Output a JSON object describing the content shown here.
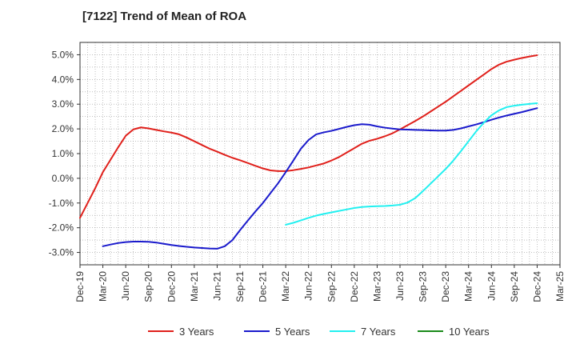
{
  "chart_data": {
    "type": "line",
    "title": "[7122]  Trend of Mean of ROA",
    "x": [
      "Dec-19",
      "Mar-20",
      "Jun-20",
      "Sep-20",
      "Dec-20",
      "Mar-21",
      "Jun-21",
      "Sep-21",
      "Dec-21",
      "Mar-22",
      "Jun-22",
      "Sep-22",
      "Dec-22",
      "Mar-23",
      "Jun-23",
      "Sep-23",
      "Dec-23",
      "Mar-24",
      "Jun-24",
      "Sep-24",
      "Dec-24",
      "Mar-25"
    ],
    "y_ticks": [
      "5.0%",
      "4.0%",
      "3.0%",
      "2.0%",
      "1.0%",
      "0.0%",
      "-1.0%",
      "-2.0%",
      "-3.0%"
    ],
    "ylim": [
      -3.5,
      5.5
    ],
    "grid": true,
    "legend_position": "bottom",
    "series": [
      {
        "name": "3 Years",
        "color": "#e0201b",
        "points": [
          [
            "Dec-19",
            -1.6
          ],
          [
            "Jan-20",
            -1.0
          ],
          [
            "Feb-20",
            -0.4
          ],
          [
            "Mar-20",
            0.25
          ],
          [
            "Apr-20",
            0.75
          ],
          [
            "May-20",
            1.25
          ],
          [
            "Jun-20",
            1.72
          ],
          [
            "Jul-20",
            1.98
          ],
          [
            "Aug-20",
            2.06
          ],
          [
            "Sep-20",
            2.02
          ],
          [
            "Oct-20",
            1.96
          ],
          [
            "Nov-20",
            1.9
          ],
          [
            "Dec-20",
            1.85
          ],
          [
            "Jan-21",
            1.78
          ],
          [
            "Feb-21",
            1.65
          ],
          [
            "Mar-21",
            1.5
          ],
          [
            "Apr-21",
            1.35
          ],
          [
            "May-21",
            1.2
          ],
          [
            "Jun-21",
            1.08
          ],
          [
            "Jul-21",
            0.95
          ],
          [
            "Aug-21",
            0.83
          ],
          [
            "Sep-21",
            0.73
          ],
          [
            "Oct-21",
            0.62
          ],
          [
            "Nov-21",
            0.51
          ],
          [
            "Dec-21",
            0.4
          ],
          [
            "Jan-22",
            0.32
          ],
          [
            "Feb-22",
            0.29
          ],
          [
            "Mar-22",
            0.29
          ],
          [
            "Apr-22",
            0.33
          ],
          [
            "May-22",
            0.38
          ],
          [
            "Jun-22",
            0.44
          ],
          [
            "Jul-22",
            0.52
          ],
          [
            "Aug-22",
            0.6
          ],
          [
            "Sep-22",
            0.72
          ],
          [
            "Oct-22",
            0.86
          ],
          [
            "Nov-22",
            1.04
          ],
          [
            "Dec-22",
            1.22
          ],
          [
            "Jan-23",
            1.4
          ],
          [
            "Feb-23",
            1.52
          ],
          [
            "Mar-23",
            1.6
          ],
          [
            "Apr-23",
            1.7
          ],
          [
            "May-23",
            1.82
          ],
          [
            "Jun-23",
            1.98
          ],
          [
            "Jul-23",
            2.15
          ],
          [
            "Aug-23",
            2.32
          ],
          [
            "Sep-23",
            2.5
          ],
          [
            "Oct-23",
            2.7
          ],
          [
            "Nov-23",
            2.9
          ],
          [
            "Dec-23",
            3.1
          ],
          [
            "Jan-24",
            3.32
          ],
          [
            "Feb-24",
            3.54
          ],
          [
            "Mar-24",
            3.76
          ],
          [
            "Apr-24",
            3.98
          ],
          [
            "May-24",
            4.2
          ],
          [
            "Jun-24",
            4.42
          ],
          [
            "Jul-24",
            4.6
          ],
          [
            "Aug-24",
            4.72
          ],
          [
            "Sep-24",
            4.8
          ],
          [
            "Oct-24",
            4.87
          ],
          [
            "Nov-24",
            4.93
          ],
          [
            "Dec-24",
            4.98
          ]
        ]
      },
      {
        "name": "5 Years",
        "color": "#1a1acc",
        "points": [
          [
            "Mar-20",
            -2.75
          ],
          [
            "Apr-20",
            -2.68
          ],
          [
            "May-20",
            -2.62
          ],
          [
            "Jun-20",
            -2.58
          ],
          [
            "Jul-20",
            -2.56
          ],
          [
            "Aug-20",
            -2.56
          ],
          [
            "Sep-20",
            -2.57
          ],
          [
            "Oct-20",
            -2.6
          ],
          [
            "Nov-20",
            -2.65
          ],
          [
            "Dec-20",
            -2.7
          ],
          [
            "Jan-21",
            -2.74
          ],
          [
            "Feb-21",
            -2.77
          ],
          [
            "Mar-21",
            -2.8
          ],
          [
            "Apr-21",
            -2.82
          ],
          [
            "May-21",
            -2.84
          ],
          [
            "Jun-21",
            -2.85
          ],
          [
            "Jul-21",
            -2.75
          ],
          [
            "Aug-21",
            -2.5
          ],
          [
            "Sep-21",
            -2.1
          ],
          [
            "Oct-21",
            -1.72
          ],
          [
            "Nov-21",
            -1.35
          ],
          [
            "Dec-21",
            -1.0
          ],
          [
            "Jan-22",
            -0.6
          ],
          [
            "Feb-22",
            -0.2
          ],
          [
            "Mar-22",
            0.25
          ],
          [
            "Apr-22",
            0.72
          ],
          [
            "May-22",
            1.2
          ],
          [
            "Jun-22",
            1.55
          ],
          [
            "Jul-22",
            1.78
          ],
          [
            "Aug-22",
            1.86
          ],
          [
            "Sep-22",
            1.92
          ],
          [
            "Oct-22",
            2.0
          ],
          [
            "Nov-22",
            2.08
          ],
          [
            "Dec-22",
            2.15
          ],
          [
            "Jan-23",
            2.19
          ],
          [
            "Feb-23",
            2.17
          ],
          [
            "Mar-23",
            2.1
          ],
          [
            "Apr-23",
            2.05
          ],
          [
            "May-23",
            2.01
          ],
          [
            "Jun-23",
            1.98
          ],
          [
            "Jul-23",
            1.97
          ],
          [
            "Aug-23",
            1.96
          ],
          [
            "Sep-23",
            1.95
          ],
          [
            "Oct-23",
            1.94
          ],
          [
            "Nov-23",
            1.93
          ],
          [
            "Dec-23",
            1.93
          ],
          [
            "Jan-24",
            1.96
          ],
          [
            "Feb-24",
            2.02
          ],
          [
            "Mar-24",
            2.1
          ],
          [
            "Apr-24",
            2.18
          ],
          [
            "May-24",
            2.27
          ],
          [
            "Jun-24",
            2.37
          ],
          [
            "Jul-24",
            2.46
          ],
          [
            "Aug-24",
            2.54
          ],
          [
            "Sep-24",
            2.61
          ],
          [
            "Oct-24",
            2.68
          ],
          [
            "Nov-24",
            2.76
          ],
          [
            "Dec-24",
            2.84
          ]
        ]
      },
      {
        "name": "7 Years",
        "color": "#22f0f0",
        "points": [
          [
            "Mar-22",
            -1.88
          ],
          [
            "Apr-22",
            -1.8
          ],
          [
            "May-22",
            -1.7
          ],
          [
            "Jun-22",
            -1.6
          ],
          [
            "Jul-22",
            -1.51
          ],
          [
            "Aug-22",
            -1.44
          ],
          [
            "Sep-22",
            -1.38
          ],
          [
            "Oct-22",
            -1.32
          ],
          [
            "Nov-22",
            -1.26
          ],
          [
            "Dec-22",
            -1.2
          ],
          [
            "Jan-23",
            -1.16
          ],
          [
            "Feb-23",
            -1.14
          ],
          [
            "Mar-23",
            -1.13
          ],
          [
            "Apr-23",
            -1.12
          ],
          [
            "May-23",
            -1.1
          ],
          [
            "Jun-23",
            -1.07
          ],
          [
            "Jul-23",
            -0.98
          ],
          [
            "Aug-23",
            -0.8
          ],
          [
            "Sep-23",
            -0.52
          ],
          [
            "Oct-23",
            -0.22
          ],
          [
            "Nov-23",
            0.08
          ],
          [
            "Dec-23",
            0.38
          ],
          [
            "Jan-24",
            0.72
          ],
          [
            "Feb-24",
            1.1
          ],
          [
            "Mar-24",
            1.5
          ],
          [
            "Apr-24",
            1.9
          ],
          [
            "May-24",
            2.25
          ],
          [
            "Jun-24",
            2.55
          ],
          [
            "Jul-24",
            2.75
          ],
          [
            "Aug-24",
            2.88
          ],
          [
            "Sep-24",
            2.94
          ],
          [
            "Oct-24",
            2.98
          ],
          [
            "Nov-24",
            3.01
          ],
          [
            "Dec-24",
            3.04
          ]
        ]
      },
      {
        "name": "10 Years",
        "color": "#1a8a1a",
        "points": []
      }
    ]
  }
}
